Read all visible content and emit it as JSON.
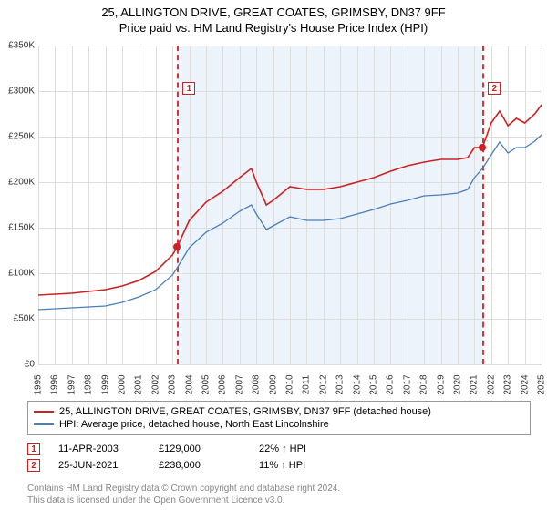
{
  "header": {
    "title1": "25, ALLINGTON DRIVE, GREAT COATES, GRIMSBY, DN37 9FF",
    "title2": "Price paid vs. HM Land Registry's House Price Index (HPI)"
  },
  "chart": {
    "type": "line",
    "background_color": "#ffffff",
    "shaded_band_color": "#eaf1fa",
    "grid_color": "#dddddd",
    "axis_fontsize": 10,
    "title_fontsize": 13,
    "y": {
      "min": 0,
      "max": 350000,
      "tick_step": 50000,
      "tick_labels": [
        "£0",
        "£50K",
        "£100K",
        "£150K",
        "£200K",
        "£250K",
        "£300K",
        "£350K"
      ]
    },
    "x": {
      "min": 1995,
      "max": 2025,
      "tick_step": 1,
      "tick_labels": [
        "1995",
        "1996",
        "1997",
        "1998",
        "1999",
        "2000",
        "2001",
        "2002",
        "2003",
        "2004",
        "2005",
        "2006",
        "2007",
        "2008",
        "2009",
        "2010",
        "2011",
        "2012",
        "2013",
        "2014",
        "2015",
        "2016",
        "2017",
        "2018",
        "2019",
        "2020",
        "2021",
        "2022",
        "2023",
        "2024",
        "2025"
      ]
    },
    "shaded_range": {
      "start": 2003.28,
      "end": 2021.48
    },
    "series": [
      {
        "name": "25, ALLINGTON DRIVE, GREAT COATES, GRIMSBY, DN37 9FF (detached house)",
        "color": "#cc2222",
        "line_width": 1.6,
        "points": [
          [
            1995,
            76000
          ],
          [
            1996,
            77000
          ],
          [
            1997,
            78000
          ],
          [
            1998,
            80000
          ],
          [
            1999,
            82000
          ],
          [
            2000,
            86000
          ],
          [
            2001,
            92000
          ],
          [
            2002,
            102000
          ],
          [
            2003,
            120000
          ],
          [
            2003.28,
            129000
          ],
          [
            2004,
            158000
          ],
          [
            2005,
            178000
          ],
          [
            2006,
            190000
          ],
          [
            2007,
            205000
          ],
          [
            2007.7,
            215000
          ],
          [
            2008,
            200000
          ],
          [
            2008.6,
            175000
          ],
          [
            2009,
            180000
          ],
          [
            2010,
            195000
          ],
          [
            2011,
            192000
          ],
          [
            2012,
            192000
          ],
          [
            2013,
            195000
          ],
          [
            2014,
            200000
          ],
          [
            2015,
            205000
          ],
          [
            2016,
            212000
          ],
          [
            2017,
            218000
          ],
          [
            2018,
            222000
          ],
          [
            2019,
            225000
          ],
          [
            2020,
            225000
          ],
          [
            2020.6,
            227000
          ],
          [
            2021,
            238000
          ],
          [
            2021.48,
            238000
          ],
          [
            2022,
            265000
          ],
          [
            2022.5,
            278000
          ],
          [
            2023,
            262000
          ],
          [
            2023.5,
            270000
          ],
          [
            2024,
            265000
          ],
          [
            2024.6,
            275000
          ],
          [
            2025,
            285000
          ]
        ]
      },
      {
        "name": "HPI: Average price, detached house, North East Lincolnshire",
        "color": "#4a7ebb",
        "line_width": 1.3,
        "points": [
          [
            1995,
            60000
          ],
          [
            1996,
            61000
          ],
          [
            1997,
            62000
          ],
          [
            1998,
            63000
          ],
          [
            1999,
            64000
          ],
          [
            2000,
            68000
          ],
          [
            2001,
            74000
          ],
          [
            2002,
            82000
          ],
          [
            2003,
            98000
          ],
          [
            2003.28,
            106000
          ],
          [
            2004,
            128000
          ],
          [
            2005,
            145000
          ],
          [
            2006,
            155000
          ],
          [
            2007,
            168000
          ],
          [
            2007.7,
            175000
          ],
          [
            2008,
            165000
          ],
          [
            2008.6,
            148000
          ],
          [
            2009,
            152000
          ],
          [
            2010,
            162000
          ],
          [
            2011,
            158000
          ],
          [
            2012,
            158000
          ],
          [
            2013,
            160000
          ],
          [
            2014,
            165000
          ],
          [
            2015,
            170000
          ],
          [
            2016,
            176000
          ],
          [
            2017,
            180000
          ],
          [
            2018,
            185000
          ],
          [
            2019,
            186000
          ],
          [
            2020,
            188000
          ],
          [
            2020.6,
            192000
          ],
          [
            2021,
            205000
          ],
          [
            2021.48,
            215000
          ],
          [
            2022,
            230000
          ],
          [
            2022.5,
            244000
          ],
          [
            2023,
            232000
          ],
          [
            2023.5,
            238000
          ],
          [
            2024,
            238000
          ],
          [
            2024.6,
            245000
          ],
          [
            2025,
            252000
          ]
        ]
      }
    ],
    "sale_markers": [
      {
        "num": "1",
        "year": 2003.28,
        "price": 129000,
        "label_y": 310000
      },
      {
        "num": "2",
        "year": 2021.48,
        "price": 238000,
        "label_y": 310000
      }
    ]
  },
  "legend": {
    "items": [
      {
        "color": "#cc2222",
        "label": "25, ALLINGTON DRIVE, GREAT COATES, GRIMSBY, DN37 9FF (detached house)"
      },
      {
        "color": "#4a7ebb",
        "label": "HPI: Average price, detached house, North East Lincolnshire"
      }
    ]
  },
  "marker_table": [
    {
      "num": "1",
      "date": "11-APR-2003",
      "price": "£129,000",
      "hpi": "22% ↑ HPI"
    },
    {
      "num": "2",
      "date": "25-JUN-2021",
      "price": "£238,000",
      "hpi": "11% ↑ HPI"
    }
  ],
  "footer": {
    "line1": "Contains HM Land Registry data © Crown copyright and database right 2024.",
    "line2": "This data is licensed under the Open Government Licence v3.0."
  }
}
